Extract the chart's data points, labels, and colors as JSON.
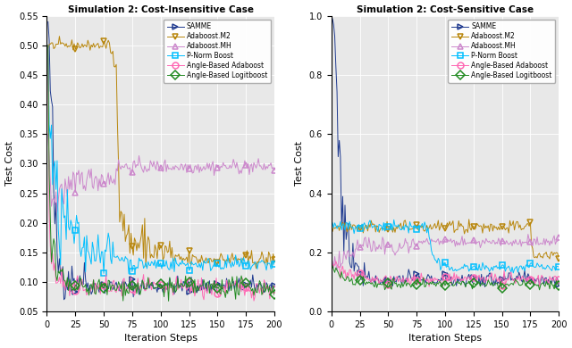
{
  "title_left": "Simulation 2: Cost-Insensitive Case",
  "title_right": "Simulation 2: Cost-Sensitive Case",
  "xlabel": "Iteration Steps",
  "ylabel": "Test Cost",
  "legend_labels": [
    "SAMME",
    "Adaboost.M2",
    "Adaboost.MH",
    "P-Norm Boost",
    "Angle-Based Adaboost",
    "Angle-Based Logitboost"
  ],
  "colors": [
    "#1F3A8F",
    "#B8860B",
    "#CC88CC",
    "#00BFFF",
    "#FF69B4",
    "#228B22"
  ],
  "markers": [
    ">",
    "v",
    "^",
    "s",
    "o",
    "D"
  ],
  "n_iter": 200,
  "seed": 42,
  "background_color": "#E8E8E8",
  "ylim_left": [
    0.05,
    0.55
  ],
  "ylim_right": [
    0.0,
    1.0
  ],
  "yticks_left": [
    0.05,
    0.1,
    0.15,
    0.2,
    0.25,
    0.3,
    0.35,
    0.4,
    0.45,
    0.5,
    0.55
  ],
  "yticks_right": [
    0.0,
    0.2,
    0.4,
    0.6,
    0.8,
    1.0
  ],
  "xticks": [
    0,
    25,
    50,
    75,
    100,
    125,
    150,
    175,
    200
  ],
  "marker_every": 25,
  "marker_size": 5,
  "linewidth": 0.7
}
